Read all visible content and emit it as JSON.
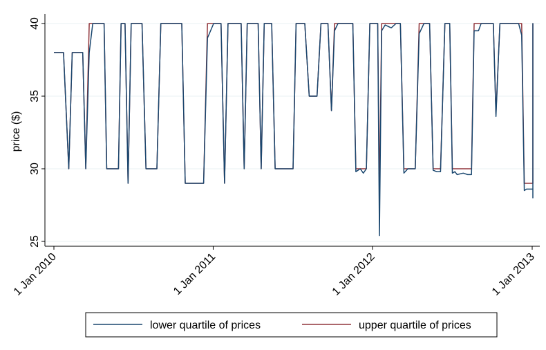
{
  "chart_data": {
    "type": "line",
    "title": "",
    "xlabel": "",
    "ylabel": "price ($)",
    "ylim": [
      25,
      40
    ],
    "xlim": [
      "2010-01-01",
      "2013-01-01"
    ],
    "yticks": [
      25,
      30,
      35,
      40
    ],
    "xticks": [
      {
        "date": "2010-01-01",
        "label": "1 Jan 2010"
      },
      {
        "date": "2011-01-01",
        "label": "1 Jan 2011"
      },
      {
        "date": "2012-01-01",
        "label": "1 Jan 2012"
      },
      {
        "date": "2013-01-01",
        "label": "1 Jan 2013"
      }
    ],
    "grid": "horizontal",
    "legend": "bottom",
    "series": [
      {
        "name": "lower quartile of prices",
        "color": "#1a476f",
        "points": [
          [
            "2010-01-01",
            38
          ],
          [
            "2010-01-23",
            38
          ],
          [
            "2010-02-04",
            30
          ],
          [
            "2010-02-12",
            38
          ],
          [
            "2010-03-08",
            38
          ],
          [
            "2010-03-15",
            30
          ],
          [
            "2010-03-23",
            38
          ],
          [
            "2010-03-31",
            40
          ],
          [
            "2010-04-26",
            40
          ],
          [
            "2010-05-02",
            30
          ],
          [
            "2010-05-29",
            30
          ],
          [
            "2010-06-04",
            40
          ],
          [
            "2010-06-13",
            40
          ],
          [
            "2010-06-20",
            29
          ],
          [
            "2010-06-27",
            40
          ],
          [
            "2010-07-22",
            40
          ],
          [
            "2010-07-31",
            30
          ],
          [
            "2010-08-25",
            30
          ],
          [
            "2010-09-03",
            40
          ],
          [
            "2010-10-21",
            40
          ],
          [
            "2010-10-29",
            29
          ],
          [
            "2010-12-10",
            29
          ],
          [
            "2010-12-19",
            39
          ],
          [
            "2011-01-02",
            40
          ],
          [
            "2011-01-19",
            40
          ],
          [
            "2011-01-27",
            29
          ],
          [
            "2011-02-04",
            40
          ],
          [
            "2011-03-06",
            40
          ],
          [
            "2011-03-13",
            30
          ],
          [
            "2011-03-20",
            40
          ],
          [
            "2011-04-14",
            40
          ],
          [
            "2011-04-21",
            30
          ],
          [
            "2011-04-28",
            40
          ],
          [
            "2011-05-15",
            40
          ],
          [
            "2011-05-23",
            30
          ],
          [
            "2011-07-03",
            30
          ],
          [
            "2011-07-10",
            40
          ],
          [
            "2011-07-30",
            40
          ],
          [
            "2011-08-09",
            35
          ],
          [
            "2011-08-27",
            35
          ],
          [
            "2011-09-05",
            40
          ],
          [
            "2011-09-21",
            40
          ],
          [
            "2011-09-29",
            34
          ],
          [
            "2011-10-06",
            39.5
          ],
          [
            "2011-10-14",
            40
          ],
          [
            "2011-11-17",
            40
          ],
          [
            "2011-11-24",
            29.8
          ],
          [
            "2011-12-04",
            30
          ],
          [
            "2011-12-11",
            29.7
          ],
          [
            "2011-12-18",
            30
          ],
          [
            "2011-12-26",
            40
          ],
          [
            "2012-01-13",
            40
          ],
          [
            "2012-01-17",
            25.4
          ],
          [
            "2012-01-22",
            39.5
          ],
          [
            "2012-01-30",
            39.9
          ],
          [
            "2012-02-13",
            39.7
          ],
          [
            "2012-02-24",
            40
          ],
          [
            "2012-03-05",
            40
          ],
          [
            "2012-03-13",
            29.7
          ],
          [
            "2012-03-22",
            30
          ],
          [
            "2012-04-08",
            30
          ],
          [
            "2012-04-17",
            39.3
          ],
          [
            "2012-04-28",
            40
          ],
          [
            "2012-05-11",
            40
          ],
          [
            "2012-05-19",
            29.9
          ],
          [
            "2012-05-27",
            29.8
          ],
          [
            "2012-06-05",
            29.8
          ],
          [
            "2012-06-15",
            40
          ],
          [
            "2012-06-26",
            40
          ],
          [
            "2012-07-02",
            29.7
          ],
          [
            "2012-07-08",
            29.8
          ],
          [
            "2012-07-13",
            29.6
          ],
          [
            "2012-07-27",
            29.7
          ],
          [
            "2012-08-06",
            29.6
          ],
          [
            "2012-08-13",
            29.6
          ],
          [
            "2012-08-15",
            29.6
          ],
          [
            "2012-08-21",
            39.5
          ],
          [
            "2012-08-31",
            39.5
          ],
          [
            "2012-09-06",
            40
          ],
          [
            "2012-10-04",
            40
          ],
          [
            "2012-10-10",
            33.6
          ],
          [
            "2012-10-19",
            40
          ],
          [
            "2012-11-15",
            40
          ],
          [
            "2012-12-01",
            40
          ],
          [
            "2012-12-08",
            39.2
          ],
          [
            "2012-12-14",
            28.5
          ],
          [
            "2012-12-19",
            28.6
          ],
          [
            "2013-01-03",
            28.6
          ],
          [
            "2013-01-09",
            28
          ],
          [
            "2013-01-17",
            39.6
          ],
          [
            "2013-01-25",
            40
          ],
          [
            "2013-02-02",
            39.8
          ],
          [
            "2013-02-08",
            29.6
          ],
          [
            "2013-02-14",
            40
          ]
        ]
      },
      {
        "name": "upper quartile of prices",
        "color": "#90353b",
        "points": [
          [
            "2010-01-01",
            38
          ],
          [
            "2010-01-23",
            38
          ],
          [
            "2010-02-04",
            30
          ],
          [
            "2010-02-12",
            38
          ],
          [
            "2010-03-08",
            38
          ],
          [
            "2010-03-15",
            30
          ],
          [
            "2010-03-23",
            40
          ],
          [
            "2010-04-26",
            40
          ],
          [
            "2010-05-02",
            30
          ],
          [
            "2010-05-29",
            30
          ],
          [
            "2010-06-04",
            40
          ],
          [
            "2010-06-13",
            40
          ],
          [
            "2010-06-20",
            29
          ],
          [
            "2010-06-27",
            40
          ],
          [
            "2010-07-22",
            40
          ],
          [
            "2010-07-31",
            30
          ],
          [
            "2010-08-25",
            30
          ],
          [
            "2010-09-03",
            40
          ],
          [
            "2010-10-21",
            40
          ],
          [
            "2010-10-29",
            29
          ],
          [
            "2010-12-10",
            29
          ],
          [
            "2010-12-19",
            40
          ],
          [
            "2011-01-19",
            40
          ],
          [
            "2011-01-27",
            29
          ],
          [
            "2011-02-04",
            40
          ],
          [
            "2011-03-06",
            40
          ],
          [
            "2011-03-13",
            30
          ],
          [
            "2011-03-20",
            40
          ],
          [
            "2011-04-14",
            40
          ],
          [
            "2011-04-21",
            30
          ],
          [
            "2011-04-28",
            40
          ],
          [
            "2011-05-15",
            40
          ],
          [
            "2011-05-23",
            30
          ],
          [
            "2011-07-03",
            30
          ],
          [
            "2011-07-10",
            40
          ],
          [
            "2011-07-30",
            40
          ],
          [
            "2011-08-09",
            35
          ],
          [
            "2011-08-27",
            35
          ],
          [
            "2011-09-05",
            40
          ],
          [
            "2011-09-21",
            40
          ],
          [
            "2011-09-29",
            34
          ],
          [
            "2011-10-06",
            40
          ],
          [
            "2011-11-17",
            40
          ],
          [
            "2011-11-24",
            30
          ],
          [
            "2011-12-18",
            30
          ],
          [
            "2011-12-26",
            40
          ],
          [
            "2012-01-13",
            40
          ],
          [
            "2012-01-17",
            28.3
          ],
          [
            "2012-01-22",
            40
          ],
          [
            "2012-03-05",
            40
          ],
          [
            "2012-03-13",
            30
          ],
          [
            "2012-04-08",
            30
          ],
          [
            "2012-04-17",
            40
          ],
          [
            "2012-05-11",
            40
          ],
          [
            "2012-05-19",
            30
          ],
          [
            "2012-06-05",
            30
          ],
          [
            "2012-06-15",
            40
          ],
          [
            "2012-06-26",
            40
          ],
          [
            "2012-07-02",
            30
          ],
          [
            "2012-08-15",
            30
          ],
          [
            "2012-08-21",
            40
          ],
          [
            "2012-10-04",
            40
          ],
          [
            "2012-10-10",
            33.8
          ],
          [
            "2012-10-19",
            40
          ],
          [
            "2012-12-08",
            40
          ],
          [
            "2012-12-14",
            29
          ],
          [
            "2013-01-09",
            29
          ],
          [
            "2013-01-17",
            40
          ],
          [
            "2013-02-02",
            40
          ],
          [
            "2013-02-08",
            30.3
          ],
          [
            "2013-02-14",
            40
          ]
        ]
      }
    ]
  }
}
